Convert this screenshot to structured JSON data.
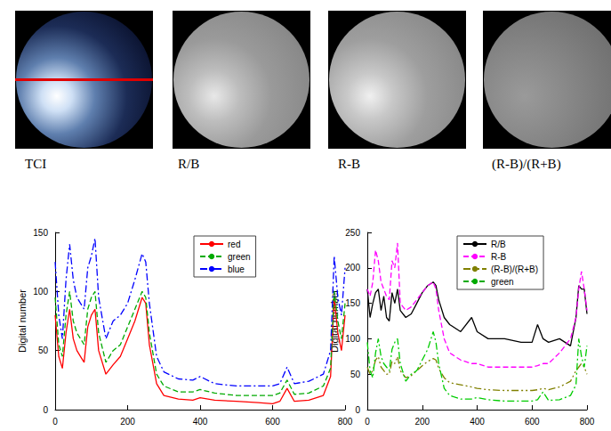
{
  "panels": [
    {
      "caption": "TCI"
    },
    {
      "caption": "R/B"
    },
    {
      "caption": "R-B"
    },
    {
      "caption": "(R-B)/(R+B)"
    }
  ],
  "chart_data": [
    {
      "type": "line",
      "ylabel": "Digital number",
      "x": [
        0,
        10,
        20,
        30,
        40,
        50,
        60,
        70,
        80,
        90,
        100,
        110,
        120,
        140,
        160,
        180,
        200,
        220,
        240,
        250,
        260,
        280,
        300,
        340,
        380,
        400,
        440,
        500,
        560,
        600,
        620,
        640,
        660,
        700,
        740,
        760,
        770,
        780,
        790,
        800
      ],
      "xlim": [
        0,
        800
      ],
      "xticks": [
        0,
        200,
        400,
        600,
        800
      ],
      "ylim": [
        0,
        150
      ],
      "yticks": [
        0,
        50,
        100,
        150
      ],
      "grid": false,
      "legend": "top",
      "series": [
        {
          "name": "red",
          "color": "#ff0000",
          "line_style": "solid",
          "values": [
            80,
            45,
            35,
            65,
            85,
            60,
            50,
            45,
            40,
            70,
            80,
            85,
            50,
            30,
            38,
            45,
            60,
            75,
            95,
            90,
            55,
            22,
            12,
            9,
            8,
            10,
            8,
            7,
            6,
            5,
            7,
            18,
            7,
            8,
            12,
            28,
            95,
            65,
            50,
            80
          ]
        },
        {
          "name": "green",
          "color": "#00aa00",
          "line_style": "dashed",
          "values": [
            95,
            55,
            45,
            80,
            100,
            75,
            65,
            60,
            55,
            85,
            95,
            100,
            65,
            40,
            50,
            55,
            70,
            85,
            100,
            95,
            65,
            30,
            20,
            15,
            15,
            17,
            14,
            12,
            12,
            12,
            14,
            25,
            13,
            14,
            20,
            35,
            100,
            75,
            60,
            90
          ]
        },
        {
          "name": "blue",
          "color": "#0000ff",
          "line_style": "dashdot",
          "values": [
            125,
            80,
            60,
            110,
            140,
            110,
            95,
            90,
            85,
            120,
            130,
            145,
            95,
            60,
            75,
            80,
            90,
            110,
            132,
            125,
            90,
            45,
            32,
            26,
            25,
            28,
            22,
            20,
            20,
            20,
            22,
            36,
            22,
            24,
            30,
            50,
            130,
            95,
            80,
            120
          ]
        }
      ]
    },
    {
      "type": "line",
      "ylabel": "Digital number",
      "x": [
        0,
        10,
        20,
        30,
        40,
        50,
        60,
        70,
        80,
        90,
        100,
        110,
        120,
        140,
        160,
        180,
        200,
        220,
        240,
        250,
        260,
        280,
        300,
        340,
        380,
        400,
        440,
        500,
        560,
        600,
        620,
        640,
        660,
        700,
        740,
        760,
        770,
        780,
        790,
        800
      ],
      "xlim": [
        0,
        800
      ],
      "xticks": [
        0,
        200,
        400,
        600,
        800
      ],
      "ylim": [
        0,
        250
      ],
      "yticks": [
        0,
        50,
        100,
        150,
        200,
        250
      ],
      "grid": false,
      "legend": "top",
      "series": [
        {
          "name": "R/B",
          "color": "#000000",
          "line_style": "solid",
          "values": [
            170,
            130,
            150,
            165,
            170,
            140,
            160,
            130,
            125,
            165,
            150,
            170,
            140,
            130,
            135,
            150,
            165,
            175,
            180,
            175,
            155,
            130,
            120,
            110,
            130,
            110,
            100,
            100,
            95,
            95,
            120,
            100,
            95,
            100,
            90,
            130,
            175,
            170,
            170,
            135
          ]
        },
        {
          "name": "R-B",
          "color": "#ff00ff",
          "line_style": "dashed",
          "values": [
            170,
            160,
            180,
            225,
            210,
            180,
            170,
            160,
            155,
            210,
            200,
            235,
            150,
            140,
            145,
            155,
            165,
            175,
            180,
            170,
            140,
            100,
            80,
            70,
            65,
            65,
            60,
            60,
            60,
            60,
            62,
            65,
            65,
            80,
            100,
            130,
            170,
            195,
            170,
            140
          ]
        },
        {
          "name": "(R-B)/(R+B)",
          "color": "#808000",
          "line_style": "dashdotdot",
          "values": [
            60,
            50,
            55,
            70,
            75,
            60,
            55,
            50,
            50,
            68,
            65,
            75,
            55,
            45,
            48,
            55,
            62,
            68,
            72,
            70,
            58,
            45,
            38,
            35,
            32,
            30,
            28,
            27,
            27,
            27,
            28,
            30,
            28,
            32,
            40,
            55,
            60,
            65,
            60,
            50
          ]
        },
        {
          "name": "green",
          "color": "#00cc00",
          "line_style": "dashdot",
          "values": [
            95,
            55,
            45,
            80,
            100,
            75,
            65,
            60,
            55,
            85,
            95,
            100,
            65,
            40,
            50,
            55,
            70,
            85,
            110,
            95,
            65,
            30,
            20,
            15,
            15,
            17,
            14,
            12,
            12,
            12,
            14,
            25,
            13,
            14,
            20,
            35,
            100,
            75,
            60,
            90
          ]
        }
      ]
    }
  ]
}
